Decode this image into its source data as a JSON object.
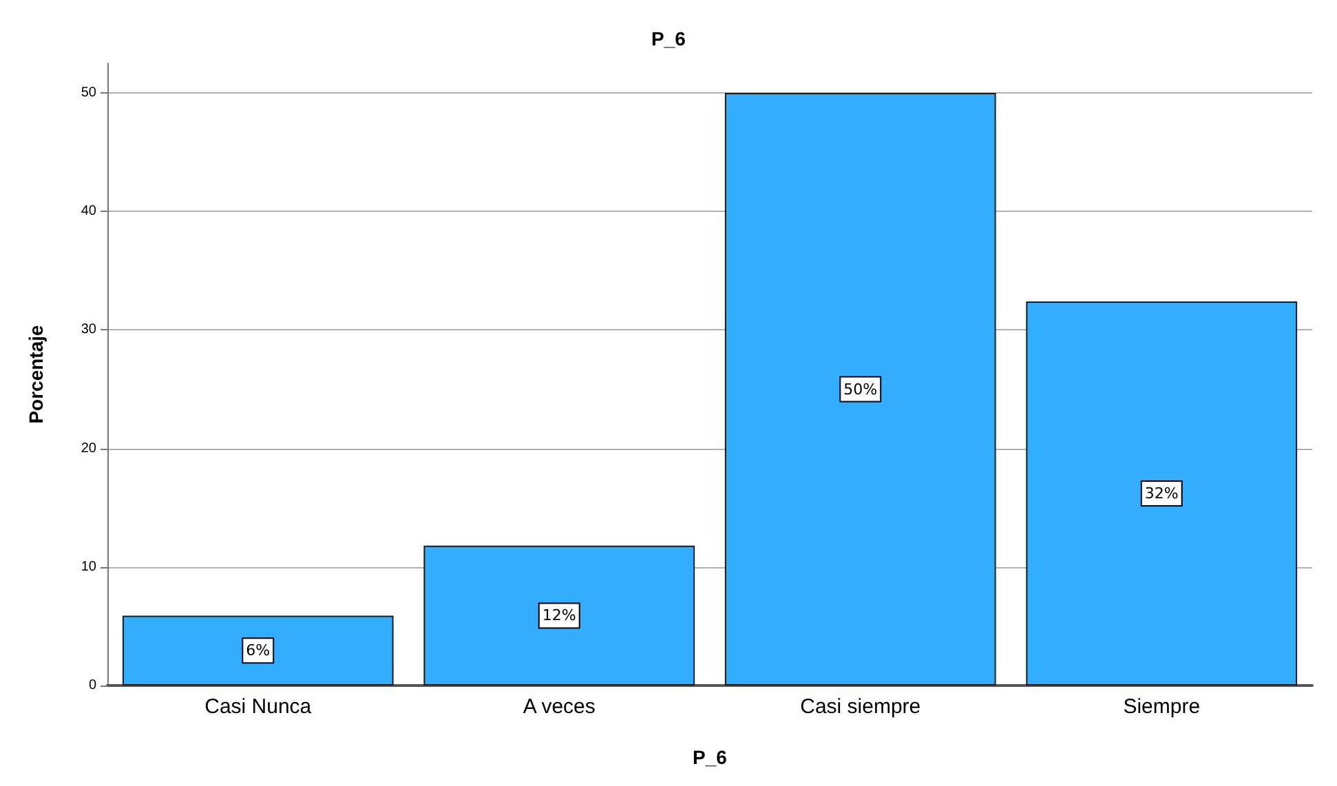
{
  "chart_data": {
    "type": "bar",
    "title": "P_6",
    "xlabel": "P_6",
    "ylabel": "Porcentaje",
    "categories": [
      "Casi Nunca",
      "A veces",
      "Casi siempre",
      "Siempre"
    ],
    "values": [
      5.9,
      11.8,
      50,
      32.4
    ],
    "color": "#33adff",
    "value_labels": [
      "6%",
      "12%",
      "50%",
      "32%"
    ],
    "ylim": [
      0,
      52.5
    ],
    "yticks": [
      0,
      10,
      20,
      30,
      40,
      50
    ],
    "grid": "y"
  }
}
